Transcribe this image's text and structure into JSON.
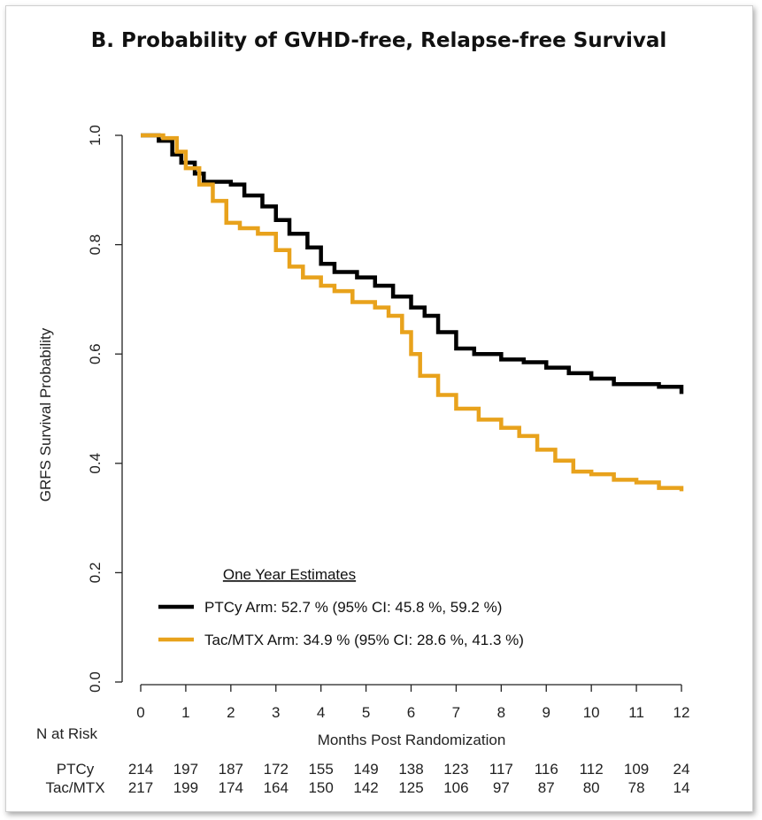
{
  "chart_data": {
    "type": "line",
    "title": "B. Probability of GVHD-free, Relapse-free Survival",
    "xlabel": "Months Post Randomization",
    "ylabel": "GRFS Survival Probability",
    "xlim": [
      0,
      12
    ],
    "ylim": [
      0,
      1
    ],
    "x_ticks": [
      "0",
      "1",
      "2",
      "3",
      "4",
      "5",
      "6",
      "7",
      "8",
      "9",
      "10",
      "11",
      "12"
    ],
    "y_ticks": [
      "0.0",
      "0.2",
      "0.4",
      "0.6",
      "0.8",
      "1.0"
    ],
    "grid": false,
    "legend_heading": "One Year Estimates",
    "series": [
      {
        "name": "PTCy Arm: 52.7 % (95% CI: 45.8 %, 59.2 %)",
        "color": "#000000",
        "points": [
          [
            0,
            1.0
          ],
          [
            0.4,
            0.99
          ],
          [
            0.7,
            0.965
          ],
          [
            0.9,
            0.95
          ],
          [
            1.2,
            0.93
          ],
          [
            1.4,
            0.915
          ],
          [
            2.0,
            0.91
          ],
          [
            2.3,
            0.89
          ],
          [
            2.7,
            0.87
          ],
          [
            3.0,
            0.845
          ],
          [
            3.3,
            0.82
          ],
          [
            3.7,
            0.795
          ],
          [
            4.0,
            0.765
          ],
          [
            4.3,
            0.75
          ],
          [
            4.8,
            0.74
          ],
          [
            5.2,
            0.725
          ],
          [
            5.6,
            0.705
          ],
          [
            6.0,
            0.685
          ],
          [
            6.3,
            0.67
          ],
          [
            6.6,
            0.64
          ],
          [
            7.0,
            0.61
          ],
          [
            7.4,
            0.6
          ],
          [
            8.0,
            0.59
          ],
          [
            8.5,
            0.585
          ],
          [
            9.0,
            0.575
          ],
          [
            9.5,
            0.565
          ],
          [
            10.0,
            0.555
          ],
          [
            10.5,
            0.545
          ],
          [
            11.0,
            0.545
          ],
          [
            11.5,
            0.54
          ],
          [
            12.0,
            0.527
          ]
        ]
      },
      {
        "name": "Tac/MTX Arm: 34.9 % (95% CI: 28.6 %, 41.3 %)",
        "color": "#E8A21C",
        "points": [
          [
            0,
            1.0
          ],
          [
            0.5,
            0.995
          ],
          [
            0.8,
            0.97
          ],
          [
            1.0,
            0.94
          ],
          [
            1.3,
            0.91
          ],
          [
            1.6,
            0.88
          ],
          [
            1.9,
            0.84
          ],
          [
            2.2,
            0.83
          ],
          [
            2.6,
            0.82
          ],
          [
            3.0,
            0.79
          ],
          [
            3.3,
            0.76
          ],
          [
            3.6,
            0.74
          ],
          [
            4.0,
            0.725
          ],
          [
            4.3,
            0.715
          ],
          [
            4.7,
            0.695
          ],
          [
            5.2,
            0.685
          ],
          [
            5.5,
            0.67
          ],
          [
            5.8,
            0.64
          ],
          [
            6.0,
            0.6
          ],
          [
            6.2,
            0.56
          ],
          [
            6.6,
            0.525
          ],
          [
            7.0,
            0.5
          ],
          [
            7.5,
            0.48
          ],
          [
            8.0,
            0.465
          ],
          [
            8.4,
            0.45
          ],
          [
            8.8,
            0.425
          ],
          [
            9.2,
            0.405
          ],
          [
            9.6,
            0.385
          ],
          [
            10.0,
            0.38
          ],
          [
            10.5,
            0.37
          ],
          [
            11.0,
            0.365
          ],
          [
            11.5,
            0.355
          ],
          [
            12.0,
            0.349
          ]
        ]
      }
    ],
    "risk_table": {
      "heading": "N at Risk",
      "rows": [
        {
          "label": "PTCy",
          "values": [
            "214",
            "197",
            "187",
            "172",
            "155",
            "149",
            "138",
            "123",
            "117",
            "116",
            "112",
            "109",
            "24"
          ]
        },
        {
          "label": "Tac/MTX",
          "values": [
            "217",
            "199",
            "174",
            "164",
            "150",
            "142",
            "125",
            "106",
            "97",
            "87",
            "80",
            "78",
            "14"
          ]
        }
      ]
    }
  }
}
